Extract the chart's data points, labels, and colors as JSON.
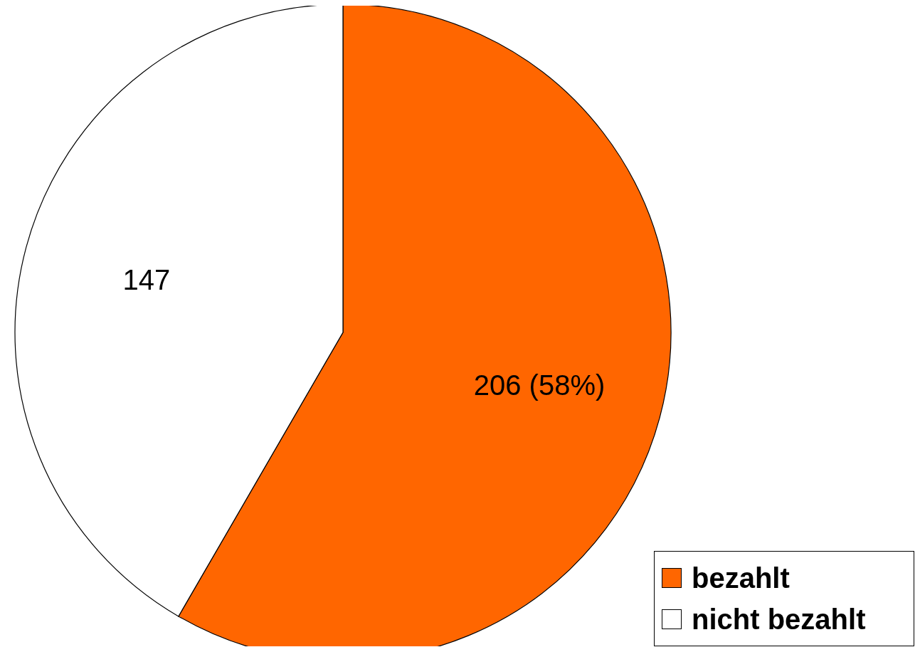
{
  "chart_data": {
    "type": "pie",
    "categories": [
      "bezahlt",
      "nicht bezahlt"
    ],
    "values": [
      206,
      147
    ],
    "colors": [
      "#ff6600",
      "#ffffff"
    ],
    "value_labels": [
      "206 (58%)",
      "147"
    ],
    "legend": "bottom right"
  }
}
